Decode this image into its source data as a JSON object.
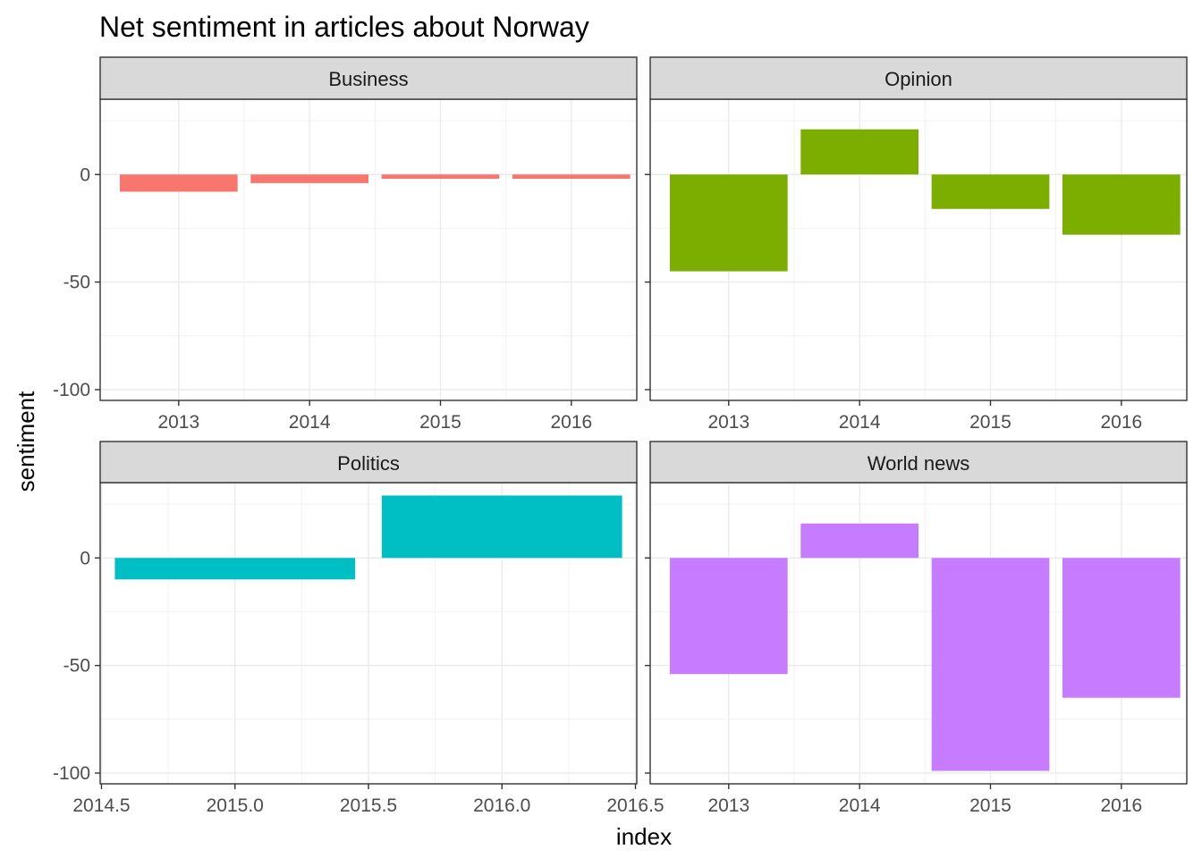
{
  "chart_data": {
    "type": "bar",
    "title": "Net sentiment in articles about Norway",
    "xlabel": "index",
    "ylabel": "sentiment",
    "ylim": [
      -105,
      35
    ],
    "y_ticks": [
      0,
      -50,
      -100
    ],
    "y_tick_labels": [
      "0",
      "-50",
      "-100"
    ],
    "grid": true,
    "facets": [
      {
        "name": "Business",
        "color": "#F8766D",
        "x_ticks": [
          2013,
          2014,
          2015,
          2016
        ],
        "x_tick_labels": [
          "2013",
          "2014",
          "2015",
          "2016"
        ],
        "xlim": [
          2012.4,
          2016.5
        ],
        "bar_width": 0.9,
        "x": [
          2013,
          2014,
          2015,
          2016
        ],
        "values": [
          -8,
          -4,
          -2,
          -2
        ]
      },
      {
        "name": "Opinion",
        "color": "#7CAE00",
        "x_ticks": [
          2013,
          2014,
          2015,
          2016
        ],
        "x_tick_labels": [
          "2013",
          "2014",
          "2015",
          "2016"
        ],
        "xlim": [
          2012.4,
          2016.5
        ],
        "bar_width": 0.9,
        "x": [
          2013,
          2014,
          2015,
          2016
        ],
        "values": [
          -45,
          21,
          -16,
          -28
        ]
      },
      {
        "name": "Politics",
        "color": "#00BFC4",
        "x_ticks": [
          2014.5,
          2015.0,
          2015.5,
          2016.0,
          2016.5
        ],
        "x_tick_labels": [
          "2014.5",
          "2015.0",
          "2015.5",
          "2016.0",
          "2016.5"
        ],
        "xlim": [
          2014.495,
          2016.505
        ],
        "bar_width": 0.9,
        "x": [
          2015,
          2016
        ],
        "values": [
          -10,
          29
        ]
      },
      {
        "name": "World news",
        "color": "#C77CFF",
        "x_ticks": [
          2013,
          2014,
          2015,
          2016
        ],
        "x_tick_labels": [
          "2013",
          "2014",
          "2015",
          "2016"
        ],
        "xlim": [
          2012.4,
          2016.5
        ],
        "bar_width": 0.9,
        "x": [
          2013,
          2014,
          2015,
          2016
        ],
        "values": [
          -54,
          16,
          -99,
          -65
        ]
      }
    ]
  }
}
